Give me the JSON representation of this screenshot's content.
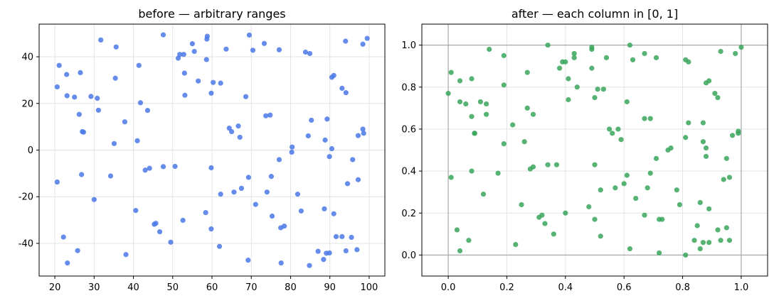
{
  "chart_data": [
    {
      "type": "scatter",
      "title": "before — arbitrary ranges",
      "xlabel": "",
      "ylabel": "",
      "xlim": [
        16,
        104
      ],
      "ylim": [
        -54,
        54
      ],
      "xticks": [
        20,
        30,
        40,
        50,
        60,
        70,
        80,
        90,
        100
      ],
      "yticks": [
        -40,
        -20,
        0,
        20,
        40
      ],
      "grid": true,
      "color": "#4a78e6",
      "points": [
        [
          20.6,
          27.1
        ],
        [
          21.1,
          36.3
        ],
        [
          23.0,
          32.4
        ],
        [
          26.5,
          33.2
        ],
        [
          23.1,
          23.3
        ],
        [
          25.0,
          22.7
        ],
        [
          20.6,
          -13.7
        ],
        [
          22.2,
          -37.3
        ],
        [
          23.2,
          -48.4
        ],
        [
          25.8,
          -43.1
        ],
        [
          26.2,
          15.3
        ],
        [
          27.0,
          7.9
        ],
        [
          27.3,
          7.7
        ],
        [
          29.2,
          23.0
        ],
        [
          30.8,
          22.2
        ],
        [
          31.1,
          17.1
        ],
        [
          31.7,
          47.2
        ],
        [
          26.8,
          -10.5
        ],
        [
          30.0,
          -21.2
        ],
        [
          34.2,
          -11.1
        ],
        [
          35.4,
          30.8
        ],
        [
          35.6,
          44.2
        ],
        [
          35.1,
          2.8
        ],
        [
          37.8,
          12.1
        ],
        [
          38.1,
          -44.8
        ],
        [
          40.6,
          -25.9
        ],
        [
          41.0,
          4.0
        ],
        [
          41.4,
          36.3
        ],
        [
          41.8,
          20.3
        ],
        [
          43.0,
          -8.6
        ],
        [
          43.6,
          17.0
        ],
        [
          44.1,
          -7.8
        ],
        [
          45.3,
          -31.8
        ],
        [
          45.7,
          -31.4
        ],
        [
          46.7,
          -35.0
        ],
        [
          47.6,
          49.4
        ],
        [
          47.6,
          -7.1
        ],
        [
          49.5,
          -39.5
        ],
        [
          50.6,
          -7.0
        ],
        [
          51.4,
          39.4
        ],
        [
          51.8,
          41.0
        ],
        [
          52.8,
          41.0
        ],
        [
          53.0,
          33.0
        ],
        [
          53.1,
          23.5
        ],
        [
          52.6,
          -30.1
        ],
        [
          55.0,
          45.6
        ],
        [
          55.5,
          42.3
        ],
        [
          56.5,
          29.6
        ],
        [
          58.6,
          38.8
        ],
        [
          58.7,
          47.6
        ],
        [
          58.8,
          48.8
        ],
        [
          59.8,
          24.4
        ],
        [
          60.3,
          29.0
        ],
        [
          58.4,
          -26.8
        ],
        [
          59.8,
          -7.6
        ],
        [
          59.8,
          -33.8
        ],
        [
          62.2,
          28.7
        ],
        [
          62.2,
          -18.9
        ],
        [
          61.9,
          -41.3
        ],
        [
          63.6,
          43.3
        ],
        [
          64.4,
          9.4
        ],
        [
          65.0,
          7.9
        ],
        [
          65.6,
          -18.0
        ],
        [
          66.7,
          10.3
        ],
        [
          67.1,
          5.5
        ],
        [
          67.5,
          -16.4
        ],
        [
          68.6,
          22.9
        ],
        [
          69.3,
          -11.7
        ],
        [
          69.5,
          49.3
        ],
        [
          69.2,
          -47.2
        ],
        [
          70.4,
          42.8
        ],
        [
          71.1,
          -23.3
        ],
        [
          73.3,
          45.7
        ],
        [
          73.7,
          14.7
        ],
        [
          74.8,
          15.0
        ],
        [
          74.0,
          -18.0
        ],
        [
          75.1,
          -11.3
        ],
        [
          75.3,
          -28.3
        ],
        [
          77.1,
          43.0
        ],
        [
          77.1,
          -4.1
        ],
        [
          77.5,
          -33.3
        ],
        [
          77.6,
          -48.4
        ],
        [
          78.4,
          -32.6
        ],
        [
          80.3,
          -0.9
        ],
        [
          80.4,
          1.3
        ],
        [
          81.8,
          -18.9
        ],
        [
          82.7,
          -26.1
        ],
        [
          83.8,
          42.0
        ],
        [
          84.5,
          6.1
        ],
        [
          84.9,
          41.4
        ],
        [
          85.3,
          12.8
        ],
        [
          84.8,
          -49.5
        ],
        [
          87.0,
          -43.4
        ],
        [
          88.4,
          -46.9
        ],
        [
          88.8,
          4.3
        ],
        [
          89.3,
          13.3
        ],
        [
          88.6,
          -25.2
        ],
        [
          89.1,
          -44.2
        ],
        [
          89.9,
          -44.1
        ],
        [
          89.9,
          -2.8
        ],
        [
          90.5,
          31.2
        ],
        [
          91.0,
          32.0
        ],
        [
          90.5,
          0.6
        ],
        [
          91.0,
          -27.3
        ],
        [
          91.6,
          -37.1
        ],
        [
          93.1,
          26.5
        ],
        [
          93.1,
          -37.1
        ],
        [
          94.1,
          24.6
        ],
        [
          94.0,
          46.7
        ],
        [
          94.1,
          -43.2
        ],
        [
          94.5,
          -14.4
        ],
        [
          95.5,
          -37.4
        ],
        [
          95.8,
          -4.1
        ],
        [
          96.9,
          -42.7
        ],
        [
          97.2,
          -12.7
        ],
        [
          97.2,
          6.2
        ],
        [
          98.4,
          45.4
        ],
        [
          98.4,
          9.0
        ],
        [
          98.6,
          7.2
        ],
        [
          99.5,
          47.9
        ]
      ]
    },
    {
      "type": "scatter",
      "title": "after — each column in [0, 1]",
      "xlabel": "",
      "ylabel": "",
      "xlim": [
        -0.09,
        1.09
      ],
      "ylim": [
        -0.1,
        1.1
      ],
      "xticks": [
        "0.0",
        "0.2",
        "0.4",
        "0.6",
        "0.8",
        "1.0"
      ],
      "yticks": [
        "0.0",
        "0.2",
        "0.4",
        "0.6",
        "0.8",
        "1.0"
      ],
      "reference_lines": {
        "x": [
          0,
          1
        ],
        "y": [
          0,
          1
        ]
      },
      "grid": true,
      "color": "#3aa65a",
      "points": [
        [
          0.0,
          0.77
        ],
        [
          0.01,
          0.87
        ],
        [
          0.01,
          0.37
        ],
        [
          0.03,
          0.12
        ],
        [
          0.04,
          0.02
        ],
        [
          0.04,
          0.73
        ],
        [
          0.04,
          0.83
        ],
        [
          0.06,
          0.72
        ],
        [
          0.07,
          0.07
        ],
        [
          0.08,
          0.66
        ],
        [
          0.08,
          0.84
        ],
        [
          0.08,
          0.4
        ],
        [
          0.09,
          0.58
        ],
        [
          0.09,
          0.58
        ],
        [
          0.11,
          0.73
        ],
        [
          0.12,
          0.29
        ],
        [
          0.13,
          0.72
        ],
        [
          0.13,
          0.67
        ],
        [
          0.14,
          0.98
        ],
        [
          0.17,
          0.39
        ],
        [
          0.19,
          0.53
        ],
        [
          0.19,
          0.81
        ],
        [
          0.19,
          0.95
        ],
        [
          0.22,
          0.62
        ],
        [
          0.23,
          0.05
        ],
        [
          0.25,
          0.24
        ],
        [
          0.26,
          0.54
        ],
        [
          0.27,
          0.87
        ],
        [
          0.27,
          0.7
        ],
        [
          0.28,
          0.41
        ],
        [
          0.29,
          0.67
        ],
        [
          0.29,
          0.42
        ],
        [
          0.31,
          0.18
        ],
        [
          0.32,
          0.19
        ],
        [
          0.33,
          0.15
        ],
        [
          0.34,
          1.0
        ],
        [
          0.34,
          0.43
        ],
        [
          0.36,
          0.1
        ],
        [
          0.37,
          0.43
        ],
        [
          0.38,
          0.89
        ],
        [
          0.39,
          0.92
        ],
        [
          0.4,
          0.92
        ],
        [
          0.4,
          0.2
        ],
        [
          0.41,
          0.84
        ],
        [
          0.41,
          0.74
        ],
        [
          0.43,
          0.96
        ],
        [
          0.44,
          0.8
        ],
        [
          0.43,
          0.94
        ],
        [
          0.48,
          0.23
        ],
        [
          0.49,
          0.89
        ],
        [
          0.49,
          0.98
        ],
        [
          0.49,
          0.99
        ],
        [
          0.5,
          0.75
        ],
        [
          0.5,
          0.43
        ],
        [
          0.5,
          0.17
        ],
        [
          0.51,
          0.79
        ],
        [
          0.52,
          0.31
        ],
        [
          0.52,
          0.09
        ],
        [
          0.53,
          0.79
        ],
        [
          0.54,
          0.94
        ],
        [
          0.55,
          0.6
        ],
        [
          0.56,
          0.58
        ],
        [
          0.57,
          0.32
        ],
        [
          0.58,
          0.6
        ],
        [
          0.59,
          0.55
        ],
        [
          0.6,
          0.34
        ],
        [
          0.61,
          0.73
        ],
        [
          0.61,
          0.38
        ],
        [
          0.62,
          1.0
        ],
        [
          0.62,
          0.03
        ],
        [
          0.63,
          0.93
        ],
        [
          0.64,
          0.27
        ],
        [
          0.67,
          0.96
        ],
        [
          0.67,
          0.65
        ],
        [
          0.68,
          0.32
        ],
        [
          0.67,
          0.19
        ],
        [
          0.69,
          0.39
        ],
        [
          0.69,
          0.65
        ],
        [
          0.71,
          0.94
        ],
        [
          0.71,
          0.46
        ],
        [
          0.72,
          0.17
        ],
        [
          0.72,
          0.01
        ],
        [
          0.73,
          0.17
        ],
        [
          0.75,
          0.5
        ],
        [
          0.76,
          0.51
        ],
        [
          0.78,
          0.31
        ],
        [
          0.79,
          0.24
        ],
        [
          0.81,
          0.93
        ],
        [
          0.81,
          0.56
        ],
        [
          0.81,
          0.0
        ],
        [
          0.82,
          0.92
        ],
        [
          0.82,
          0.63
        ],
        [
          0.84,
          0.07
        ],
        [
          0.85,
          0.14
        ],
        [
          0.86,
          0.03
        ],
        [
          0.86,
          0.25
        ],
        [
          0.87,
          0.54
        ],
        [
          0.87,
          0.06
        ],
        [
          0.87,
          0.63
        ],
        [
          0.88,
          0.47
        ],
        [
          0.88,
          0.82
        ],
        [
          0.88,
          0.51
        ],
        [
          0.89,
          0.22
        ],
        [
          0.89,
          0.83
        ],
        [
          0.89,
          0.06
        ],
        [
          0.91,
          0.77
        ],
        [
          0.92,
          0.12
        ],
        [
          0.92,
          0.75
        ],
        [
          0.93,
          0.97
        ],
        [
          0.93,
          0.07
        ],
        [
          0.94,
          0.36
        ],
        [
          0.95,
          0.13
        ],
        [
          0.95,
          0.46
        ],
        [
          0.96,
          0.37
        ],
        [
          0.96,
          0.07
        ],
        [
          0.97,
          0.57
        ],
        [
          0.99,
          0.59
        ],
        [
          0.98,
          0.96
        ],
        [
          0.99,
          0.58
        ],
        [
          1.0,
          0.99
        ]
      ]
    }
  ]
}
